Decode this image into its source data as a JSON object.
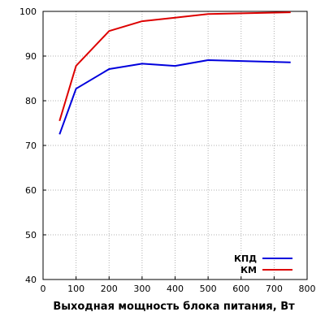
{
  "chart_data": {
    "type": "line",
    "xlabel": "Выходная мощность блока питания, Вт",
    "ylabel": "",
    "xlim": [
      0,
      800
    ],
    "ylim": [
      40,
      100
    ],
    "x_ticks": [
      0,
      100,
      200,
      300,
      400,
      500,
      600,
      700,
      800
    ],
    "y_ticks": [
      40,
      50,
      60,
      70,
      80,
      90,
      100
    ],
    "grid": "dotted",
    "legend_position": "bottom-right",
    "series": [
      {
        "name": "КПД",
        "color": "#0000dd",
        "x": [
          50,
          100,
          200,
          300,
          400,
          500,
          750
        ],
        "y": [
          72.5,
          82.7,
          87.1,
          88.3,
          87.8,
          89.1,
          88.6
        ]
      },
      {
        "name": "КМ",
        "color": "#dd0000",
        "x": [
          50,
          100,
          200,
          300,
          400,
          500,
          750
        ],
        "y": [
          75.5,
          87.8,
          95.6,
          97.8,
          98.6,
          99.4,
          99.8
        ]
      }
    ]
  }
}
